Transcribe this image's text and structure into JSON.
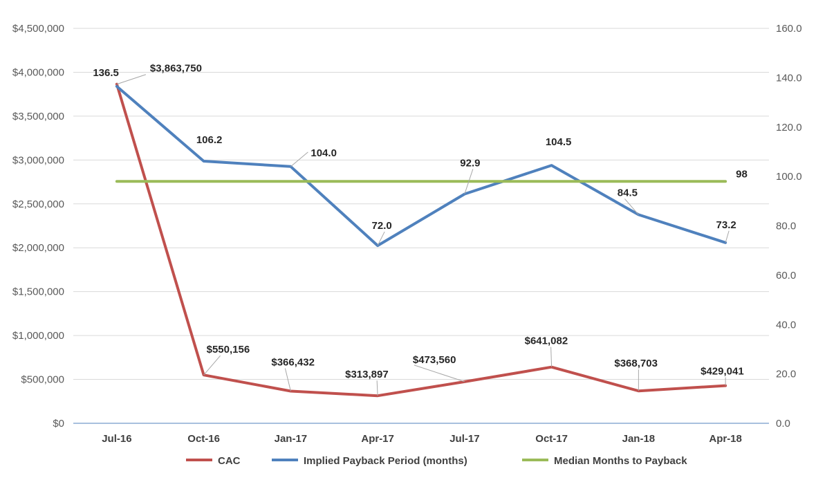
{
  "chart_data": {
    "type": "line",
    "categories": [
      "Jul-16",
      "Oct-16",
      "Jan-17",
      "Apr-17",
      "Jul-17",
      "Oct-17",
      "Jan-18",
      "Apr-18"
    ],
    "y_left": {
      "ticks": [
        "$0",
        "$500,000",
        "$1,000,000",
        "$1,500,000",
        "$2,000,000",
        "$2,500,000",
        "$3,000,000",
        "$3,500,000",
        "$4,000,000",
        "$4,500,000"
      ],
      "lim": [
        0,
        4500000
      ]
    },
    "y_right": {
      "ticks": [
        "0.0",
        "20.0",
        "40.0",
        "60.0",
        "80.0",
        "100.0",
        "120.0",
        "140.0",
        "160.0"
      ],
      "lim": [
        0,
        160
      ]
    },
    "grid": true,
    "legend_position": "bottom",
    "series": [
      {
        "name": "CAC",
        "axis": "left",
        "color": "#C0504D",
        "values": [
          3863750,
          550156,
          366432,
          313897,
          473560,
          641082,
          368703,
          429041
        ],
        "labels": [
          "$3,863,750",
          "$550,156",
          "$366,432",
          "$313,897",
          "$473,560",
          "$641,082",
          "$368,703",
          "$429,041"
        ]
      },
      {
        "name": "Implied Payback Period (months)",
        "axis": "right",
        "color": "#4F81BD",
        "values": [
          136.5,
          106.2,
          104.0,
          72.0,
          92.9,
          104.5,
          84.5,
          73.2
        ],
        "labels": [
          "136.5",
          "106.2",
          "104.0",
          "72.0",
          "92.9",
          "104.5",
          "84.5",
          "73.2"
        ]
      },
      {
        "name": "Median Months to Payback",
        "axis": "right",
        "color": "#9BBB59",
        "values": [
          98,
          98,
          98,
          98,
          98,
          98,
          98,
          98
        ],
        "end_label": "98"
      }
    ]
  }
}
